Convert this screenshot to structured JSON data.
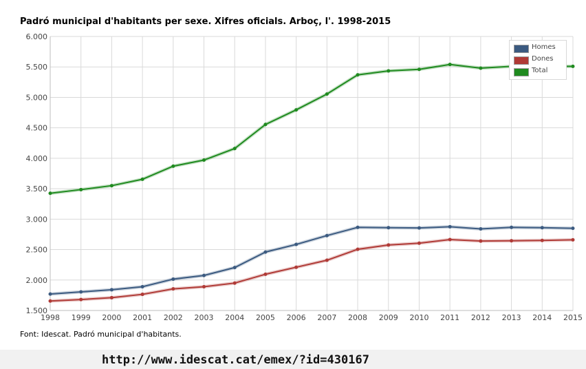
{
  "chart_data": {
    "type": "line",
    "title": "Padró municipal d'habitants per sexe. Xifres oficials. Arboç, l'. 1998-2015",
    "xlabel": "",
    "ylabel": "",
    "categories": [
      "1998",
      "1999",
      "2000",
      "2001",
      "2002",
      "2003",
      "2004",
      "2005",
      "2006",
      "2007",
      "2008",
      "2009",
      "2010",
      "2011",
      "2012",
      "2013",
      "2014",
      "2015"
    ],
    "ylim": [
      1500,
      6000
    ],
    "yticks": [
      "1.500",
      "2.000",
      "2.500",
      "3.000",
      "3.500",
      "4.000",
      "4.500",
      "5.000",
      "5.500",
      "6.000"
    ],
    "grid": true,
    "legend_position": "top-right",
    "series": [
      {
        "name": "Homes",
        "color": "#3b5a80",
        "values": [
          1770,
          1805,
          1840,
          1890,
          2015,
          2075,
          2205,
          2460,
          2585,
          2730,
          2865,
          2860,
          2855,
          2875,
          2840,
          2865,
          2860,
          2850
        ]
      },
      {
        "name": "Dones",
        "color": "#b03a36",
        "values": [
          1655,
          1680,
          1710,
          1765,
          1855,
          1890,
          1950,
          2095,
          2210,
          2325,
          2505,
          2575,
          2605,
          2665,
          2640,
          2645,
          2650,
          2660
        ]
      },
      {
        "name": "Total",
        "color": "#1f8a1f",
        "values": [
          3425,
          3485,
          3550,
          3655,
          3870,
          3970,
          4160,
          4555,
          4795,
          5055,
          5370,
          5435,
          5460,
          5540,
          5480,
          5510,
          5510,
          5510
        ]
      }
    ]
  },
  "footer": {
    "source": "Font: Idescat. Padró municipal d'habitants.",
    "url": "http://www.idescat.cat/emex/?id=430167"
  }
}
